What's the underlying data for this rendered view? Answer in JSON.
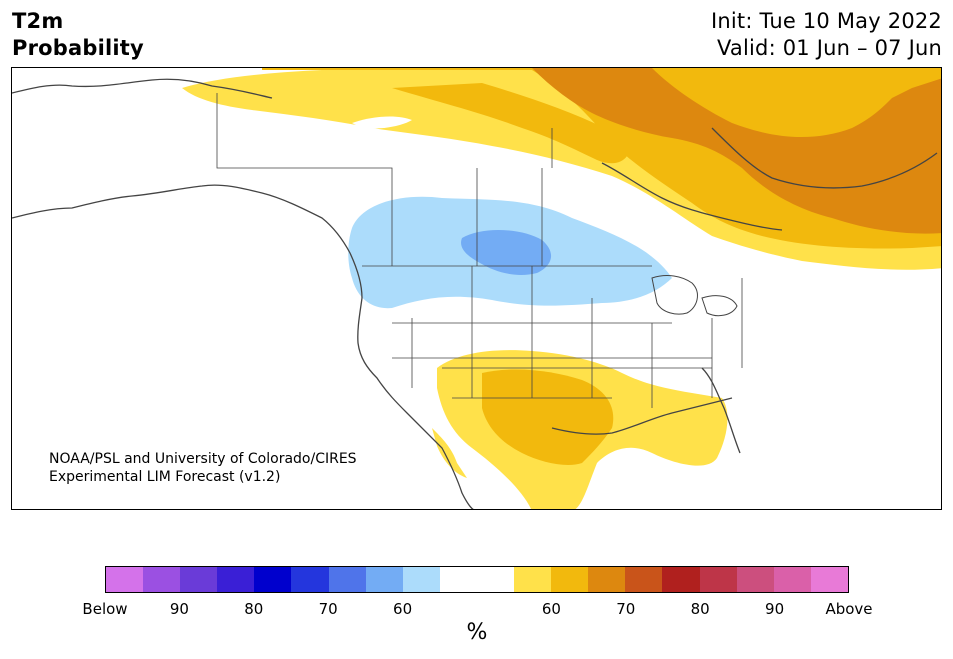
{
  "title": {
    "variable": "T2m",
    "product": "Probability",
    "init": "Init: Tue 10 May 2022",
    "valid": "Valid: 01 Jun – 07 Jun"
  },
  "credit": {
    "line1": "NOAA/PSL and University of Colorado/CIRES",
    "line2": "Experimental LIM Forecast (v1.2)"
  },
  "colorbar": {
    "colors": [
      "#d472ea",
      "#9b50e2",
      "#6a3bd8",
      "#3a1fd6",
      "#0000cd",
      "#2436dd",
      "#4f74ea",
      "#73acf4",
      "#acdcfb",
      "#ffffff",
      "#ffffff",
      "#ffe14a",
      "#f2b90d",
      "#dd880f",
      "#c9541a",
      "#b0201e",
      "#be3548",
      "#cc4f7e",
      "#da60a9",
      "#e87ad7"
    ],
    "labels": [
      "Below",
      "90",
      "80",
      "70",
      "60",
      "60",
      "70",
      "80",
      "90",
      "Above"
    ],
    "unit": "%"
  },
  "legend_colors": {
    "above_60": "#ffe14a",
    "above_70": "#f2b90d",
    "above_80": "#dd880f",
    "below_60": "#acdcfb",
    "below_70": "#73acf4"
  }
}
